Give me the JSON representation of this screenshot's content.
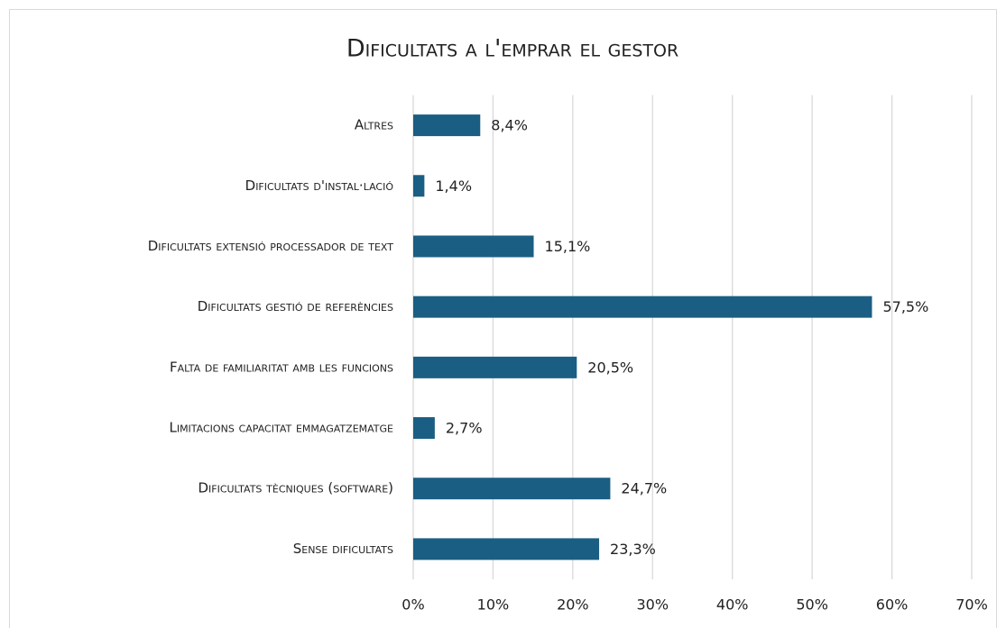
{
  "chart_data": {
    "type": "hbar",
    "title": "Dificultats a l'emprar el gestor",
    "categories": [
      "Altres",
      "Dificultats d'instal·lació",
      "Dificultats extensió processador de text",
      "Dificultats gestió de referències",
      "Falta de familiaritat amb les funcions",
      "Limitacions capacitat emmagatzematge",
      "Dificultats tècniques (software)",
      "Sense dificultats"
    ],
    "values": [
      8.4,
      1.4,
      15.1,
      57.5,
      20.5,
      2.7,
      24.7,
      23.3
    ],
    "value_labels": [
      "8,4%",
      "1,4%",
      "15,1%",
      "57,5%",
      "20,5%",
      "2,7%",
      "24,7%",
      "23,3%"
    ],
    "color": "#1a5e83",
    "xlim": [
      0,
      70
    ],
    "xticks": [
      {
        "value": 0,
        "label": "0%"
      },
      {
        "value": 10,
        "label": "10%"
      },
      {
        "value": 20,
        "label": "20%"
      },
      {
        "value": 30,
        "label": "30%"
      },
      {
        "value": 40,
        "label": "40%"
      },
      {
        "value": 50,
        "label": "50%"
      },
      {
        "value": 60,
        "label": "60%"
      },
      {
        "value": 70,
        "label": "70%"
      }
    ],
    "grid": true
  }
}
